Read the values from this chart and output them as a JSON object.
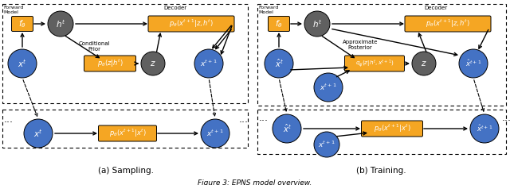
{
  "orange": "#F5A623",
  "blue": "#4472C4",
  "gray": "#606060",
  "bg": "#FFFFFF",
  "caption_a": "(a) Sampling.",
  "caption_b": "(b) Training.",
  "fig_caption": "Figure 3: EPNS model overview."
}
